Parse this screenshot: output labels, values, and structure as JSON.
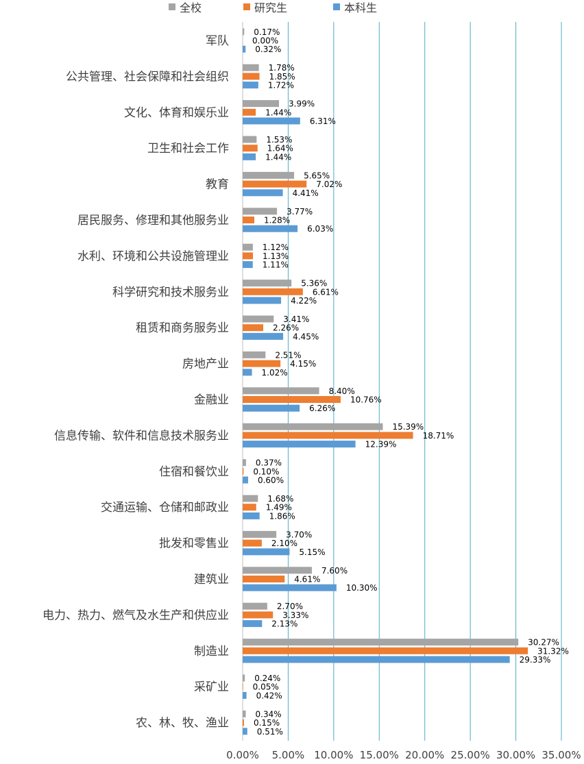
{
  "chart_data": {
    "type": "bar",
    "orientation": "horizontal",
    "categories": [
      "军队",
      "公共管理、社会保障和社会组织",
      "文化、体育和娱乐业",
      "卫生和社会工作",
      "教育",
      "居民服务、修理和其他服务业",
      "水利、环境和公共设施管理业",
      "科学研究和技术服务业",
      "租赁和商务服务业",
      "房地产业",
      "金融业",
      "信息传输、软件和信息技术服务业",
      "住宿和餐饮业",
      "交通运输、仓储和邮政业",
      "批发和零售业",
      "建筑业",
      "电力、热力、燃气及水生产和供应业",
      "制造业",
      "采矿业",
      "农、林、牧、渔业"
    ],
    "series": [
      {
        "name": "全校",
        "color": "#a5a5a5",
        "values": [
          0.17,
          1.78,
          3.99,
          1.53,
          5.65,
          3.77,
          1.12,
          5.36,
          3.41,
          2.51,
          8.4,
          15.39,
          0.37,
          1.68,
          3.7,
          7.6,
          2.7,
          30.27,
          0.24,
          0.34
        ],
        "labels": [
          "0.17%",
          "1.78%",
          "3.99%",
          "1.53%",
          "5.65%",
          "3.77%",
          "1.12%",
          "5.36%",
          "3.41%",
          "2.51%",
          "8.40%",
          "15.39%",
          "0.37%",
          "1.68%",
          "3.70%",
          "7.60%",
          "2.70%",
          "30.27%",
          "0.24%",
          "0.34%"
        ]
      },
      {
        "name": "研究生",
        "color": "#ed7d31",
        "values": [
          0.0,
          1.85,
          1.44,
          1.64,
          7.02,
          1.28,
          1.13,
          6.61,
          2.26,
          4.15,
          10.76,
          18.71,
          0.1,
          1.49,
          2.1,
          4.61,
          3.33,
          31.32,
          0.05,
          0.15
        ],
        "labels": [
          "0.00%",
          "1.85%",
          "1.44%",
          "1.64%",
          "7.02%",
          "1.28%",
          "1.13%",
          "6.61%",
          "2.26%",
          "4.15%",
          "10.76%",
          "18.71%",
          "0.10%",
          "1.49%",
          "2.10%",
          "4.61%",
          "3.33%",
          "31.32%",
          "0.05%",
          "0.15%"
        ]
      },
      {
        "name": "本科生",
        "color": "#5b9bd5",
        "values": [
          0.32,
          1.72,
          6.31,
          1.44,
          4.41,
          6.03,
          1.11,
          4.22,
          4.45,
          1.02,
          6.26,
          12.39,
          0.6,
          1.86,
          5.15,
          10.3,
          2.13,
          29.33,
          0.42,
          0.51
        ],
        "labels": [
          "0.32%",
          "1.72%",
          "6.31%",
          "1.44%",
          "4.41%",
          "6.03%",
          "1.11%",
          "4.22%",
          "4.45%",
          "1.02%",
          "6.26%",
          "12.39%",
          "0.60%",
          "1.86%",
          "5.15%",
          "10.30%",
          "2.13%",
          "29.33%",
          "0.42%",
          "0.51%"
        ]
      }
    ],
    "xlim": [
      0,
      35
    ],
    "x_ticks": [
      0,
      5,
      10,
      15,
      20,
      25,
      30,
      35
    ],
    "x_tick_labels": [
      "0.00%",
      "5.00%",
      "10.00%",
      "15.00%",
      "20.00%",
      "25.00%",
      "30.00%",
      "35.00%"
    ],
    "grid": "vertical",
    "legend": "top",
    "colors": {
      "grid": "#4bacc6",
      "axis": "#bfbfbf"
    }
  }
}
